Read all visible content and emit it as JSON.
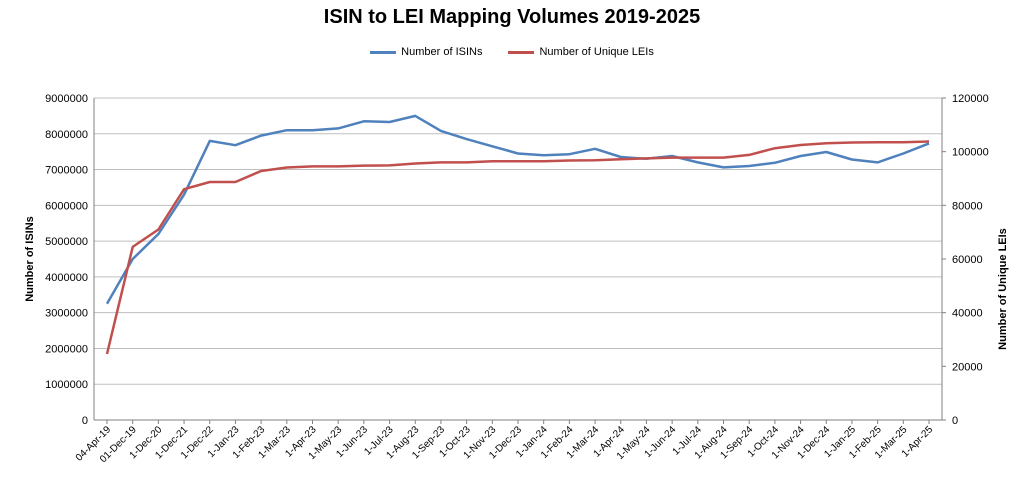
{
  "chart_data": {
    "type": "line",
    "title": "ISIN to LEI Mapping Volumes 2019-2025",
    "categories": [
      "04-Apr-19",
      "01-Dec-19",
      "1-Dec-20",
      "1-Dec-21",
      "1-Dec-22",
      "1-Jan-23",
      "1-Feb-23",
      "1-Mar-23",
      "1-Apr-23",
      "1-May-23",
      "1-Jun-23",
      "1-Jul-23",
      "1-Aug-23",
      "1-Sep-23",
      "1-Oct-23",
      "1-Nov-23",
      "1-Dec-23",
      "1-Jan-24",
      "1-Feb-24",
      "1-Mar-24",
      "1-Apr-24",
      "1-May-24",
      "1-Jun-24",
      "1-Jul-24",
      "1-Aug-24",
      "1-Sep-24",
      "1-Oct-24",
      "1-Nov-24",
      "1-Dec-24",
      "1-Jan-25",
      "1-Feb-25",
      "1-Mar-25",
      "1-Apr-25"
    ],
    "ylabel": "Number of ISINs",
    "y2label": "Number of Unique LEIs",
    "ylim": [
      0,
      9000000
    ],
    "y2lim": [
      0,
      120000
    ],
    "yticks": [
      "0",
      "1000000",
      "2000000",
      "3000000",
      "4000000",
      "5000000",
      "6000000",
      "7000000",
      "8000000",
      "9000000"
    ],
    "y2ticks": [
      "0",
      "20000",
      "40000",
      "60000",
      "80000",
      "100000",
      "120000"
    ],
    "grid": true,
    "legend_position": "top-center",
    "series": [
      {
        "name": "Number of ISINs",
        "axis": "left",
        "color": "#4f81bd",
        "values": [
          3250000,
          4500000,
          5200000,
          6300000,
          7800000,
          7680000,
          7950000,
          8100000,
          8100000,
          8150000,
          8350000,
          8330000,
          8500000,
          8080000,
          7850000,
          7650000,
          7450000,
          7400000,
          7430000,
          7580000,
          7350000,
          7300000,
          7380000,
          7200000,
          7060000,
          7100000,
          7190000,
          7380000,
          7490000,
          7280000,
          7200000,
          7450000,
          7730000
        ]
      },
      {
        "name": "Number of Unique LEIs",
        "axis": "right",
        "color": "#c0504d",
        "values": [
          24600,
          64500,
          71000,
          86000,
          88700,
          88700,
          92800,
          94100,
          94500,
          94500,
          94800,
          94900,
          95600,
          96000,
          96000,
          96400,
          96400,
          96400,
          96700,
          96800,
          97200,
          97500,
          97800,
          97800,
          97800,
          98800,
          101300,
          102500,
          103100,
          103400,
          103500,
          103500,
          103800
        ]
      }
    ]
  }
}
